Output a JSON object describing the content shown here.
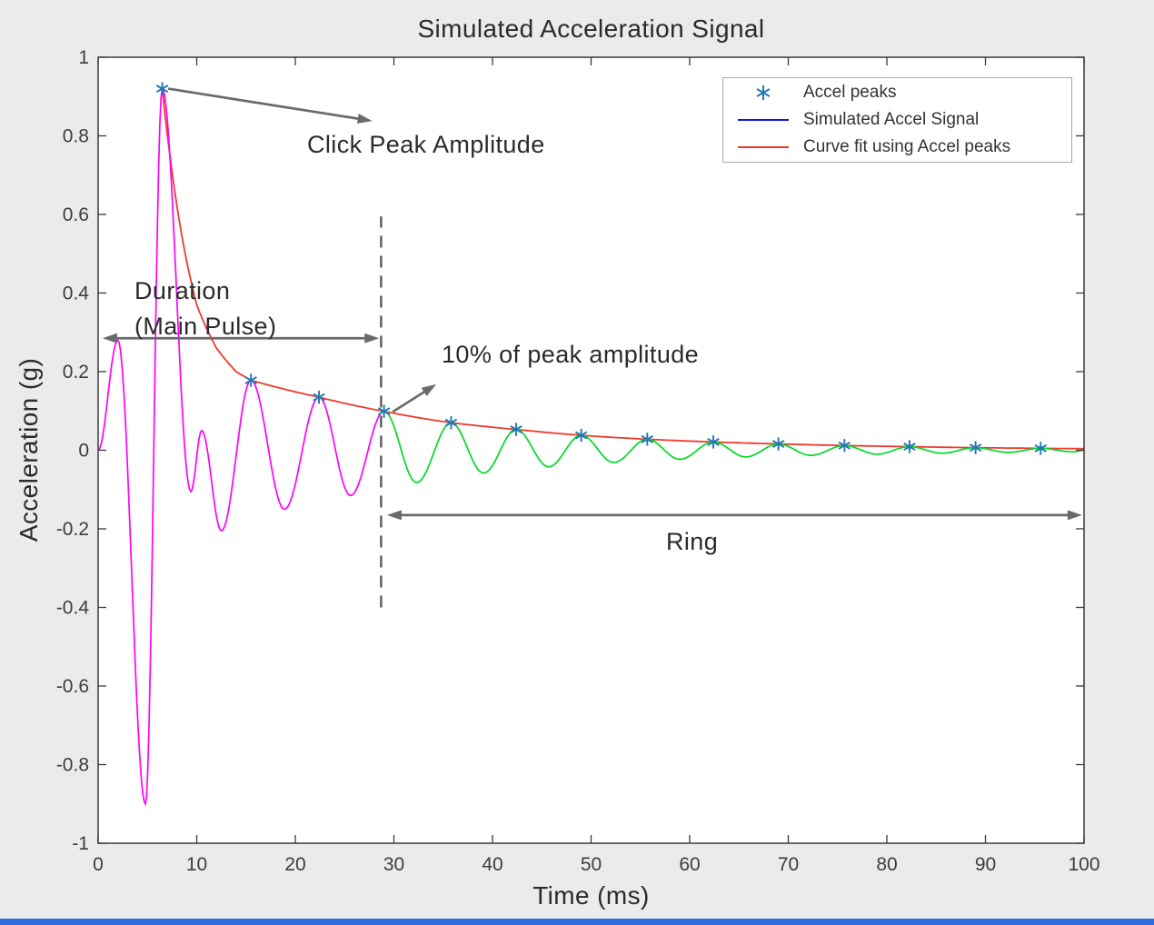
{
  "page": {
    "background": "#ebebeb",
    "bottom_bar_color": "#2d6ce0"
  },
  "chart_data": {
    "type": "line",
    "title": "Simulated Acceleration Signal",
    "xlabel": "Time (ms)",
    "ylabel": "Acceleration (g)",
    "xlim": [
      0,
      100
    ],
    "ylim": [
      -1,
      1
    ],
    "grid": false,
    "x_ticks": {
      "values": [
        0,
        10,
        20,
        30,
        40,
        50,
        60,
        70,
        80,
        90,
        100
      ],
      "labels": [
        "0",
        "10",
        "20",
        "30",
        "40",
        "50",
        "60",
        "70",
        "80",
        "90",
        "100"
      ]
    },
    "y_ticks": {
      "values": [
        1,
        0.8,
        0.6,
        0.4,
        0.2,
        0,
        -0.2,
        -0.4,
        -0.6,
        -0.8,
        -1
      ],
      "labels": [
        "1",
        "0.8",
        "0.6",
        "0.4",
        "0.2",
        "0",
        "-0.2",
        "-0.4",
        "-0.6",
        "-0.8",
        "-1"
      ]
    },
    "style": {
      "plot_background": "#ffffff",
      "axis_color": "#3a3a3a",
      "tick_label_color": "#3d3d3d",
      "annotation_arrow_color": "#6a6a6a",
      "dashed_line_color": "#5a5a5a"
    },
    "legend": {
      "position": "top-right",
      "entries": [
        {
          "label": "Accel peaks",
          "symbol": "asterisk-marker",
          "color": "#2077b4"
        },
        {
          "label": "Simulated Accel Signal",
          "symbol": "line",
          "color": "#1414e0"
        },
        {
          "label": "Curve fit using Accel peaks",
          "symbol": "line",
          "color": "#ee3a2c"
        }
      ]
    },
    "series": [
      {
        "name": "Simulated Accel Signal",
        "render": "oscillation-through-extrema",
        "segments": [
          {
            "label": "main-pulse",
            "color": "#ff00ff",
            "t_range": [
              0,
              28.7
            ]
          },
          {
            "label": "ring",
            "color": "#00d926",
            "t_range": [
              28.7,
              100
            ]
          }
        ],
        "extrema": [
          [
            0,
            0
          ],
          [
            2,
            0.28
          ],
          [
            4.8,
            -0.9
          ],
          [
            6.5,
            0.92
          ],
          [
            9.4,
            -0.105
          ],
          [
            10.5,
            0.05
          ],
          [
            12.5,
            -0.205
          ],
          [
            15.5,
            0.178
          ],
          [
            18.9,
            -0.15
          ],
          [
            22.4,
            0.135
          ],
          [
            25.6,
            -0.115
          ],
          [
            29,
            0.099
          ],
          [
            32.3,
            -0.082
          ],
          [
            35.8,
            0.07
          ],
          [
            39.1,
            -0.058
          ],
          [
            42.4,
            0.053
          ],
          [
            45.7,
            -0.042
          ],
          [
            49,
            0.038
          ],
          [
            52.3,
            -0.031
          ],
          [
            55.7,
            0.028
          ],
          [
            59,
            -0.023
          ],
          [
            62.4,
            0.021
          ],
          [
            65.7,
            -0.017
          ],
          [
            69,
            0.016
          ],
          [
            72.3,
            -0.013
          ],
          [
            75.7,
            0.012
          ],
          [
            79,
            -0.01
          ],
          [
            82.3,
            0.009
          ],
          [
            85.6,
            -0.0075
          ],
          [
            89,
            0.0065
          ],
          [
            92.3,
            -0.0055
          ],
          [
            95.6,
            0.0048
          ],
          [
            98.9,
            -0.004
          ],
          [
            100,
            0
          ]
        ]
      },
      {
        "name": "Curve fit using Accel peaks",
        "render": "exponential-decay-curve",
        "color": "#ee3a2c",
        "points": [
          [
            6.5,
            0.92
          ],
          [
            8,
            0.62
          ],
          [
            10,
            0.37
          ],
          [
            12,
            0.26
          ],
          [
            14,
            0.2
          ],
          [
            15.5,
            0.178
          ],
          [
            22.4,
            0.135
          ],
          [
            29,
            0.099
          ],
          [
            35.8,
            0.07
          ],
          [
            42.4,
            0.053
          ],
          [
            49,
            0.038
          ],
          [
            55.7,
            0.028
          ],
          [
            62.4,
            0.021
          ],
          [
            69,
            0.016
          ],
          [
            75.7,
            0.012
          ],
          [
            82.3,
            0.009
          ],
          [
            89,
            0.0065
          ],
          [
            95.6,
            0.0048
          ],
          [
            100,
            0.004
          ]
        ]
      },
      {
        "name": "Accel peaks",
        "render": "markers",
        "marker": "asterisk",
        "color": "#2077b4",
        "points": [
          [
            6.5,
            0.92
          ],
          [
            15.5,
            0.178
          ],
          [
            22.4,
            0.135
          ],
          [
            29,
            0.099
          ],
          [
            35.8,
            0.07
          ],
          [
            42.4,
            0.053
          ],
          [
            49,
            0.038
          ],
          [
            55.7,
            0.028
          ],
          [
            62.4,
            0.021
          ],
          [
            69,
            0.016
          ],
          [
            75.7,
            0.012
          ],
          [
            82.3,
            0.009
          ],
          [
            89,
            0.0065
          ],
          [
            95.6,
            0.0048
          ]
        ]
      }
    ],
    "annotations": [
      {
        "id": "click-peak",
        "text": "Click Peak Amplitude",
        "arrow": {
          "type": "single",
          "from": [
            7.1,
            0.92
          ],
          "to": [
            27.8,
            0.838
          ]
        }
      },
      {
        "id": "duration",
        "text": "Duration\n(Main Pulse)",
        "arrow": {
          "type": "double",
          "from": [
            0.45,
            0.285
          ],
          "to": [
            28.5,
            0.285
          ]
        }
      },
      {
        "id": "ten-percent",
        "text": "10% of peak amplitude",
        "arrow": {
          "type": "single",
          "from": [
            29.9,
            0.098
          ],
          "to": [
            34.3,
            0.168
          ]
        }
      },
      {
        "id": "ring",
        "text": "Ring",
        "arrow": {
          "type": "double",
          "from": [
            29.3,
            -0.165
          ],
          "to": [
            99.8,
            -0.165
          ]
        }
      },
      {
        "id": "threshold",
        "type": "dashed-line",
        "x": 28.7,
        "y_from": -0.4,
        "y_to": 0.595
      }
    ]
  }
}
